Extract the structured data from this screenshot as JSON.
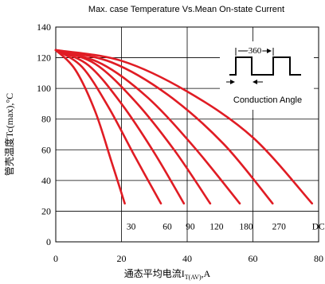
{
  "chart_data": {
    "type": "line",
    "title": "Max. case Temperature Vs.Mean On-state Current",
    "xlabel": "通态平均电流I",
    "xlabel_sub": "T(AV)",
    "xlabel_unit": ",A",
    "ylabel": "管壳温度Tc(max),°C",
    "xlim": [
      0,
      80
    ],
    "ylim": [
      0,
      140
    ],
    "xticks": [
      0,
      20,
      40,
      60,
      80
    ],
    "yticks": [
      0,
      20,
      40,
      60,
      80,
      100,
      120,
      140
    ],
    "grid": true,
    "line_color": "#e01c24",
    "series": [
      {
        "name": "30",
        "x": [
          0,
          6,
          12,
          17,
          21
        ],
        "y": [
          125,
          112,
          85,
          52,
          25
        ]
      },
      {
        "name": "60",
        "x": [
          0,
          8,
          16,
          24,
          32
        ],
        "y": [
          125,
          114,
          88,
          56,
          25
        ]
      },
      {
        "name": "90",
        "x": [
          0,
          10,
          20,
          30,
          39
        ],
        "y": [
          125,
          115,
          90,
          58,
          25
        ]
      },
      {
        "name": "120",
        "x": [
          0,
          12,
          24,
          36,
          47
        ],
        "y": [
          125,
          116,
          92,
          60,
          25
        ]
      },
      {
        "name": "180",
        "x": [
          0,
          14,
          28,
          42,
          56
        ],
        "y": [
          125,
          116,
          94,
          62,
          25
        ]
      },
      {
        "name": "270",
        "x": [
          0,
          17,
          34,
          51,
          66
        ],
        "y": [
          125,
          117,
          96,
          64,
          25
        ]
      },
      {
        "name": "DC",
        "x": [
          0,
          20,
          40,
          60,
          78
        ],
        "y": [
          125,
          118,
          98,
          68,
          25
        ]
      }
    ],
    "inset": {
      "angle_label": "360",
      "caption": "Conduction Angle"
    }
  }
}
